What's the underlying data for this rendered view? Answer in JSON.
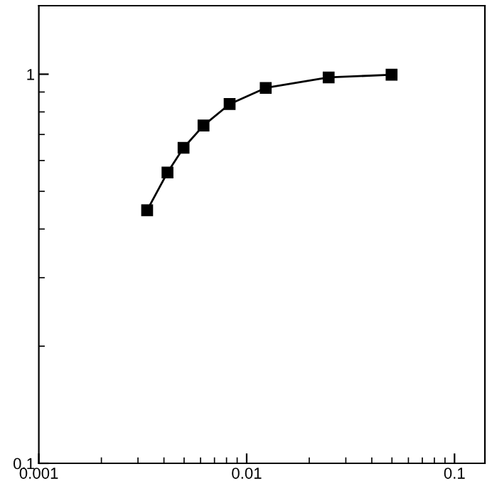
{
  "chart_data": {
    "type": "line",
    "log": "xy",
    "marker": "square",
    "line_style": "solid",
    "grid": false,
    "legend": false,
    "x": [
      0.00332,
      0.00416,
      0.00497,
      0.0062,
      0.00828,
      0.01235,
      0.0248,
      0.0498
    ],
    "series": [
      {
        "color": "#000000",
        "values": [
          0.447,
          0.559,
          0.647,
          0.738,
          0.838,
          0.922,
          0.981,
          0.997
        ]
      }
    ],
    "xlim": [
      0.001,
      0.14
    ],
    "ylim": [
      0.1,
      1.5
    ],
    "xticks": [
      {
        "value": 0.001,
        "label": "0.001"
      },
      {
        "value": 0.01,
        "label": "0.01"
      },
      {
        "value": 0.1,
        "label": "0.1"
      }
    ],
    "yticks": [
      {
        "value": 0.1,
        "label": "0.1"
      },
      {
        "value": 1,
        "label": "1"
      }
    ]
  }
}
